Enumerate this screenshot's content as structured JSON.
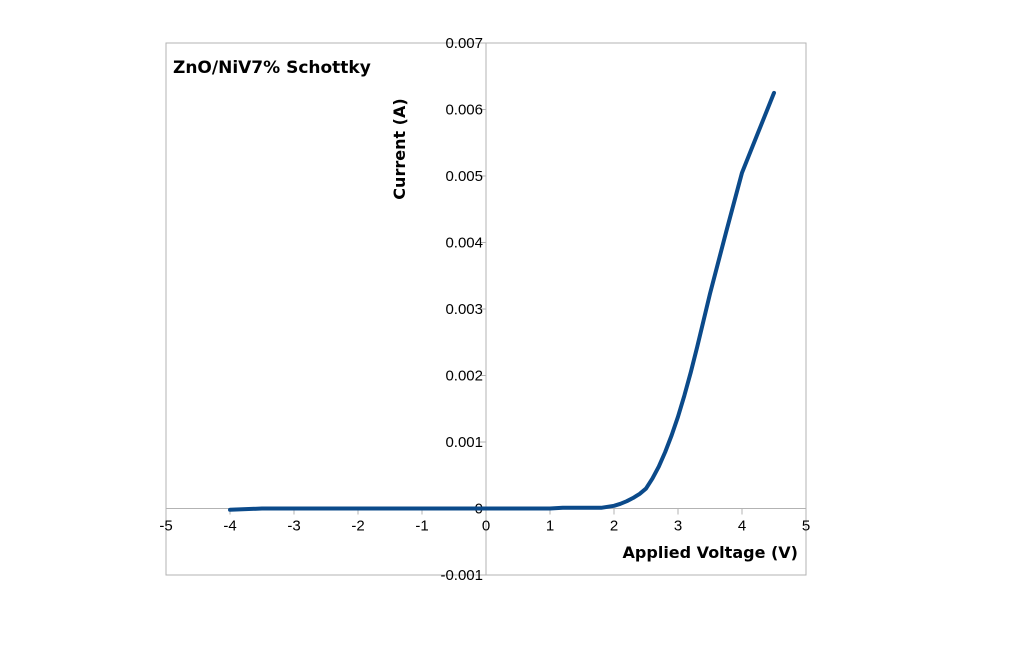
{
  "chart_data": {
    "type": "line",
    "title": "ZnO/NiV7% Schottky",
    "xlabel": "Applied Voltage (V)",
    "ylabel": "Current (A)",
    "xlim": [
      -5,
      5
    ],
    "ylim": [
      -0.001,
      0.007
    ],
    "x_ticks": [
      "-5",
      "-4",
      "-3",
      "-2",
      "-1",
      "0",
      "1",
      "2",
      "3",
      "4",
      "5"
    ],
    "y_ticks": [
      "-0.001",
      "0",
      "0.001",
      "0.002",
      "0.003",
      "0.004",
      "0.005",
      "0.006",
      "0.007"
    ],
    "grid": false,
    "legend": "none",
    "line_color": "#0b4a8a",
    "series": [
      {
        "x": [
          -4.0,
          -3.5,
          -3.0,
          -2.5,
          -2.0,
          -1.5,
          -1.0,
          -0.5,
          0.0,
          0.5,
          1.0,
          1.2,
          1.5,
          1.8,
          2.0,
          2.1,
          2.2,
          2.3,
          2.4,
          2.5,
          2.6,
          2.7,
          2.8,
          2.9,
          3.0,
          3.1,
          3.2,
          3.3,
          3.4,
          3.5,
          3.75,
          4.0,
          4.25,
          4.5
        ],
        "y": [
          -2e-05,
          0.0,
          0.0,
          0.0,
          0.0,
          0.0,
          0.0,
          0.0,
          0.0,
          0.0,
          0.0,
          1e-05,
          1e-05,
          1e-05,
          4e-05,
          7e-05,
          0.00011,
          0.00016,
          0.00022,
          0.0003,
          0.00045,
          0.00063,
          0.00085,
          0.0011,
          0.00138,
          0.0017,
          0.00205,
          0.00243,
          0.00283,
          0.00323,
          0.00415,
          0.00505,
          0.00565,
          0.00625
        ]
      }
    ]
  }
}
